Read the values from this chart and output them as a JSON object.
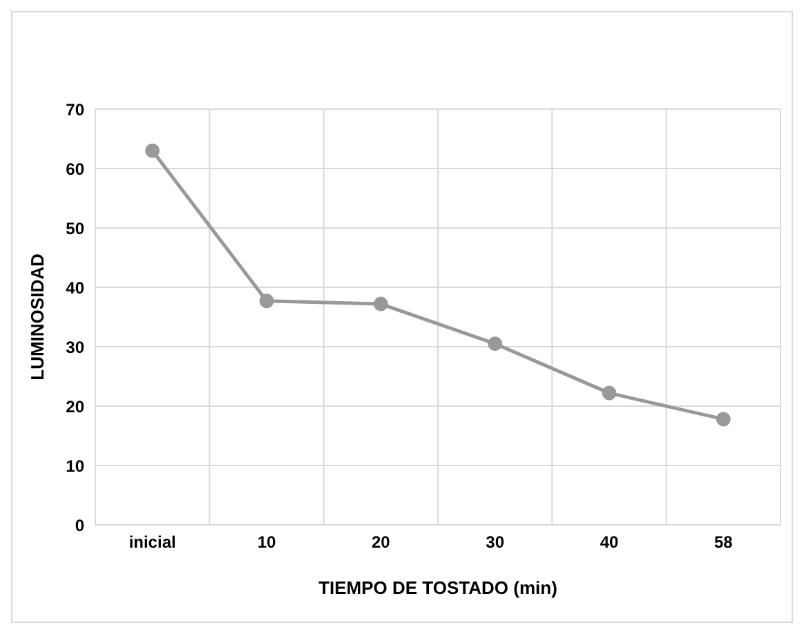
{
  "chart_data": {
    "type": "line",
    "xlabel": "TIEMPO DE TOSTADO (min)",
    "ylabel": "LUMINOSIDAD",
    "categories": [
      "inicial",
      "10",
      "20",
      "30",
      "40",
      "58"
    ],
    "series": [
      {
        "color": "#999999",
        "values": [
          63,
          37.7,
          37.2,
          30.5,
          22.2,
          17.8
        ]
      }
    ],
    "ylim": [
      0,
      70
    ],
    "yticks": [
      0,
      10,
      20,
      30,
      40,
      50,
      60,
      70
    ],
    "grid": true,
    "marker": "circle",
    "line_style": "solid"
  }
}
